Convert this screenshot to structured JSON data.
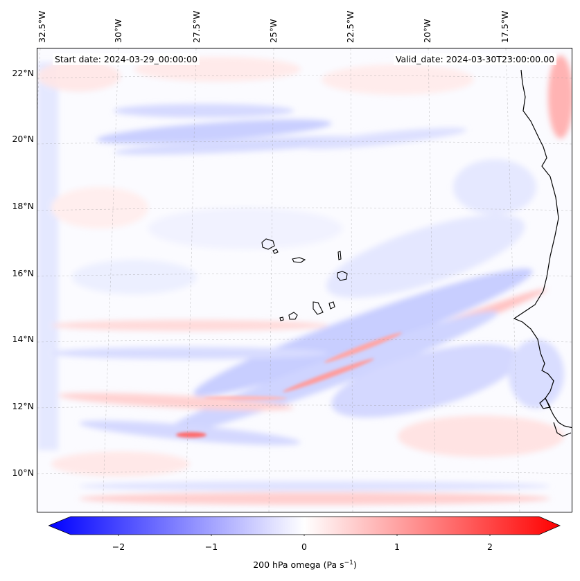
{
  "header": {
    "start_date": "Start date: 2024-03-29_00:00:00",
    "valid_date": "Valid_date: 2024-03-30T23:00:00.00"
  },
  "map": {
    "lon_labels": [
      "32.5°W",
      "30°W",
      "27.5°W",
      "25°W",
      "22.5°W",
      "20°W",
      "17.5°W"
    ],
    "lat_labels": [
      "22°N",
      "20°N",
      "18°N",
      "16°N",
      "14°N",
      "12°N",
      "10°N"
    ],
    "colors": {
      "negative": "#0000ff",
      "zero": "#ffffff",
      "positive": "#ff0000",
      "coast": "#000000"
    }
  },
  "colorbar": {
    "ticks": [
      "−2",
      "−1",
      "0",
      "1",
      "2"
    ],
    "label_prefix": "200 hPa omega (Pa s",
    "label_exp": "−1",
    "label_suffix": ")",
    "range": [
      -2.6,
      2.6
    ]
  }
}
